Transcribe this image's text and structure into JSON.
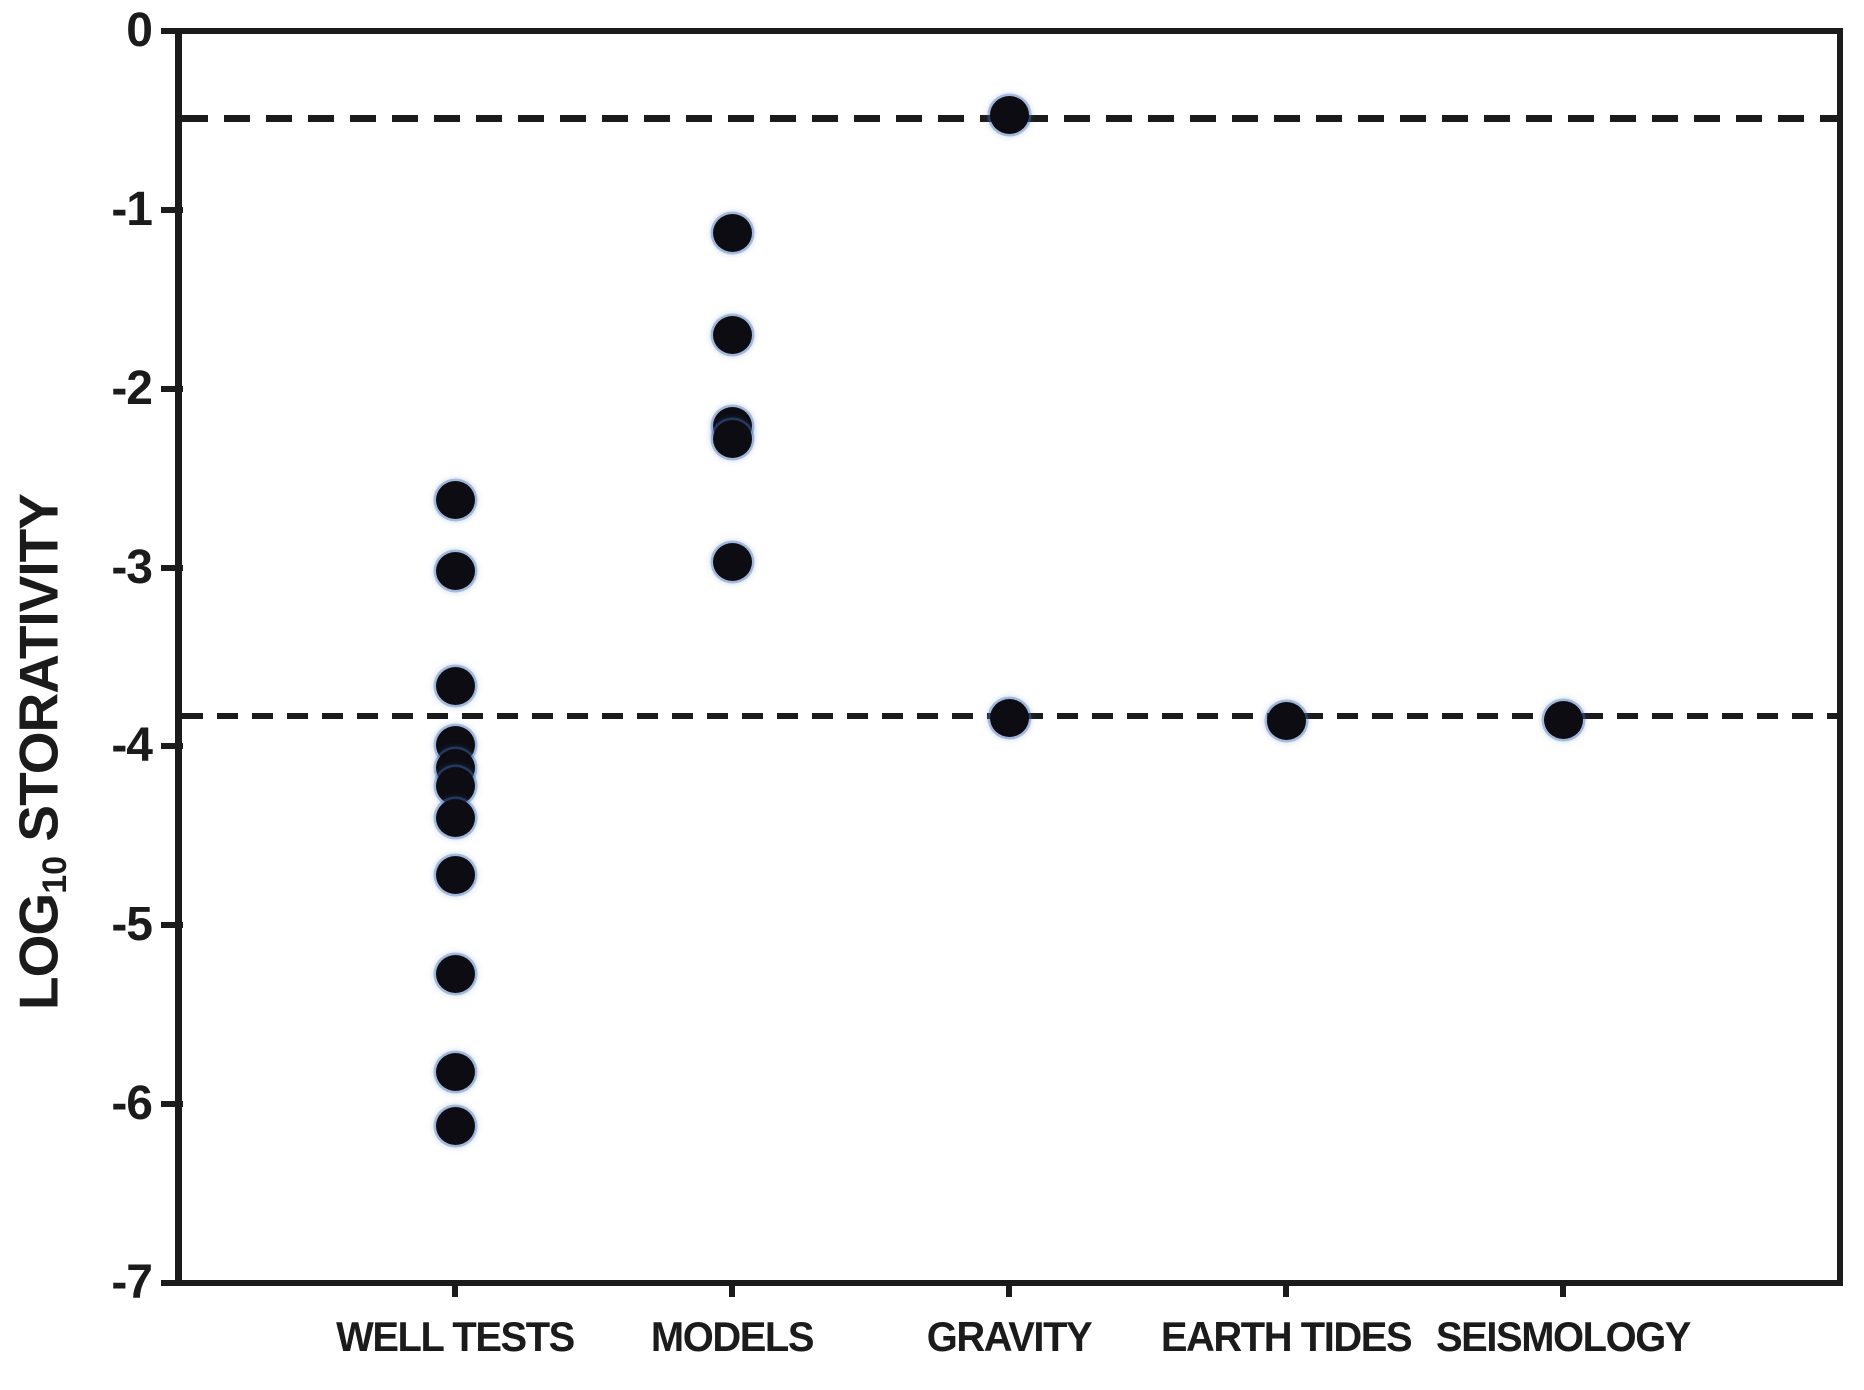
{
  "colors": {
    "ink": "#1b1b1b",
    "background": "#ffffff",
    "marker_fill": "#0c0c12",
    "marker_halo": "#3f6cb4"
  },
  "chart_data": {
    "type": "scatter",
    "title": "",
    "xlabel": "",
    "ylabel": {
      "prefix": "LOG",
      "subscript": "10",
      "suffix": " STORATIVITY"
    },
    "categories": [
      "WELL TESTS",
      "MODELS",
      "GRAVITY",
      "EARTH TIDES",
      "SEISMOLOGY"
    ],
    "series": [
      {
        "name": "WELL TESTS",
        "values": [
          -2.62,
          -3.02,
          -3.66,
          -3.99,
          -4.12,
          -4.22,
          -4.4,
          -4.72,
          -5.27,
          -5.82,
          -6.12
        ]
      },
      {
        "name": "MODELS",
        "values": [
          -1.13,
          -1.7,
          -2.21,
          -2.28,
          -2.97
        ]
      },
      {
        "name": "GRAVITY",
        "values": [
          -0.47,
          -3.84
        ]
      },
      {
        "name": "EARTH TIDES",
        "values": [
          -3.86
        ]
      },
      {
        "name": "SEISMOLOGY",
        "values": [
          -3.85
        ]
      }
    ],
    "y_ticks": [
      "0",
      "-1",
      "-2",
      "-3",
      "-4",
      "-5",
      "-6",
      "-7"
    ],
    "ylim": [
      -7,
      0
    ],
    "reference_lines": [
      {
        "value": -0.49,
        "style": "dashed"
      },
      {
        "value": -3.83,
        "style": "dashed"
      }
    ],
    "grid": false,
    "legend": "none",
    "marker": {
      "shape": "circle"
    }
  }
}
